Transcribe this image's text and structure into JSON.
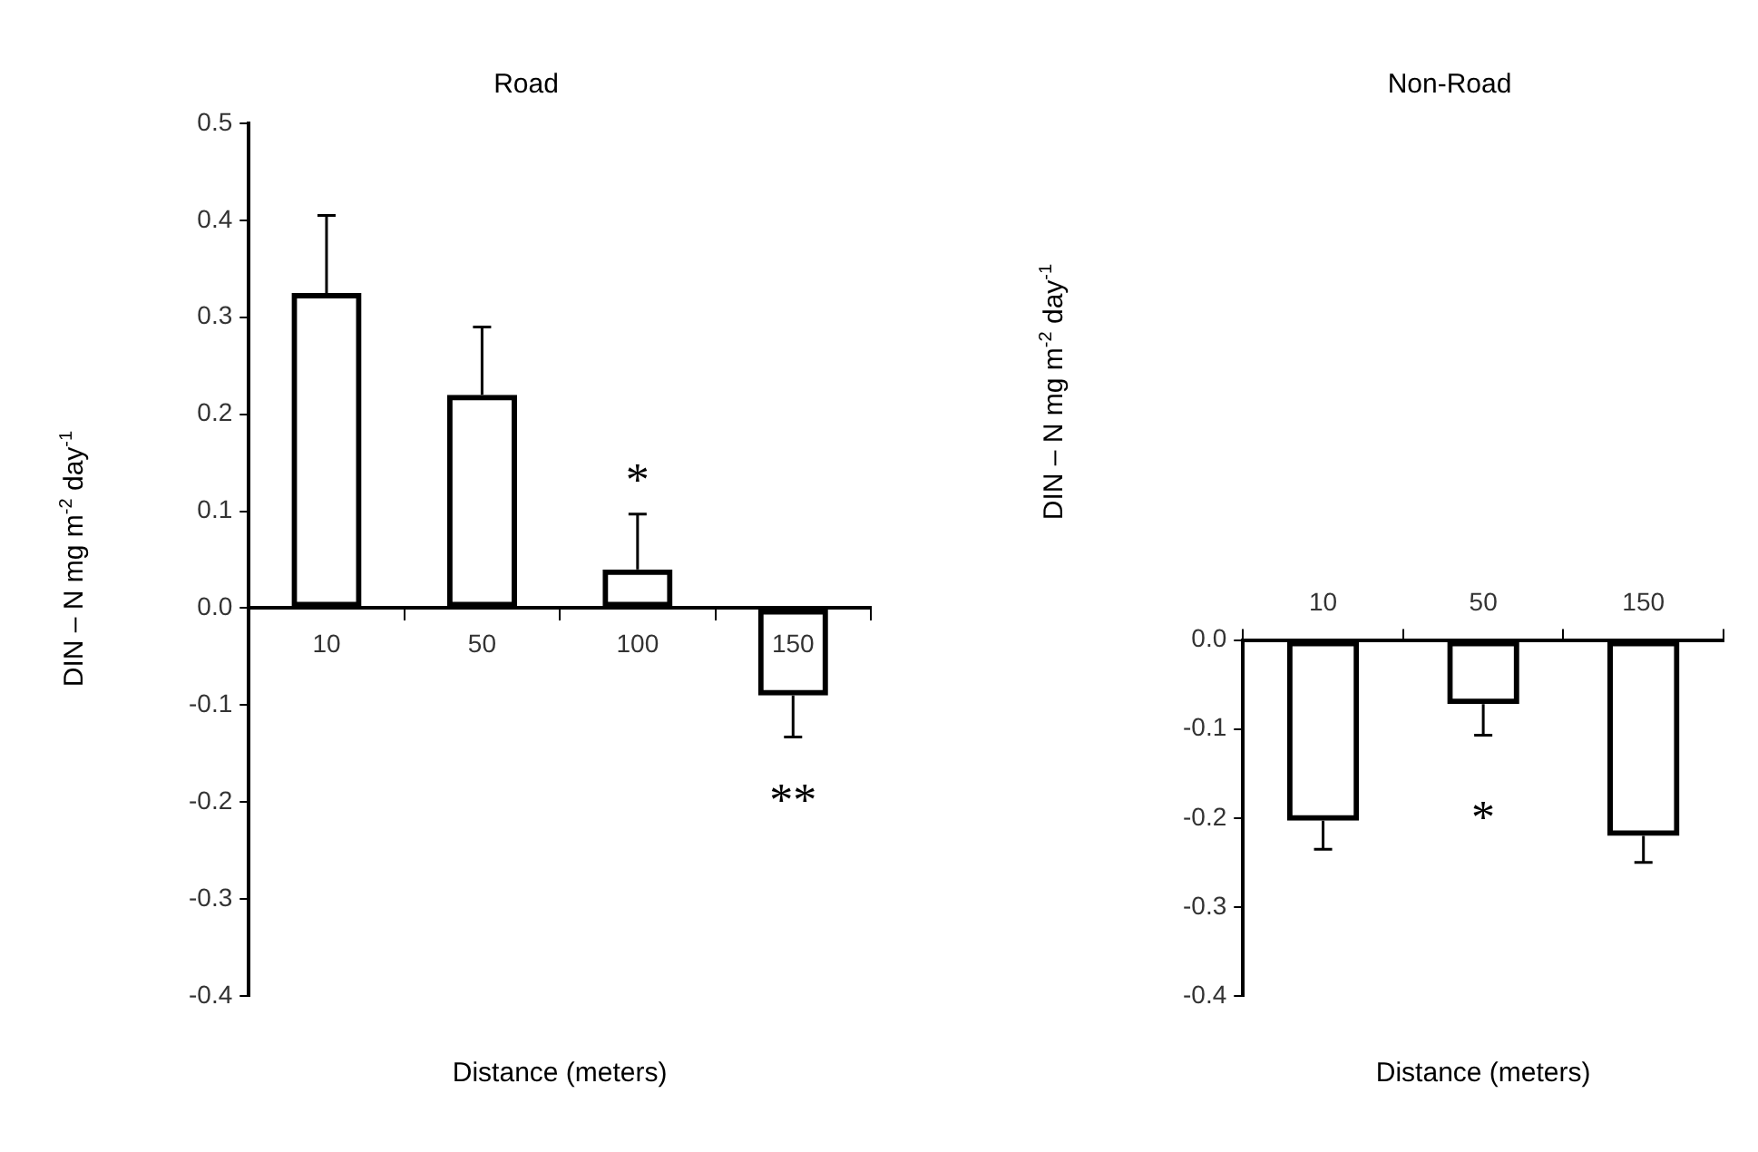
{
  "chart_data": [
    {
      "type": "bar",
      "title": "Road",
      "xlabel": "Distance (meters)",
      "ylabel": "DIN – N mg m$^{-2}$ day$^{-1}$",
      "categories": [
        "10",
        "50",
        "100",
        "150"
      ],
      "values": [
        0.325,
        0.22,
        0.04,
        -0.09
      ],
      "color": "#000000",
      "errors": [
        [
          0.325,
          0.405
        ],
        [
          0.22,
          0.29
        ],
        [
          0.04,
          0.097
        ],
        [
          -0.133,
          -0.09
        ]
      ],
      "ylim": [
        -0.4,
        0.5
      ],
      "yticks": [
        {
          "value": -0.4,
          "label": "-0.4"
        },
        {
          "value": -0.3,
          "label": "-0.3"
        },
        {
          "value": -0.2,
          "label": "-0.2"
        },
        {
          "value": -0.1,
          "label": "-0.1"
        },
        {
          "value": 0,
          "label": "0.0"
        },
        {
          "value": 0.1,
          "label": "0.1"
        },
        {
          "value": 0.2,
          "label": "0.2"
        },
        {
          "value": 0.3,
          "label": "0.3"
        },
        {
          "value": 0.4,
          "label": "0.4"
        },
        {
          "value": 0.5,
          "label": "0.5"
        }
      ],
      "annotations": [
        "*",
        "**"
      ],
      "grid": false,
      "legend": false
    },
    {
      "type": "bar",
      "title": "Non-Road",
      "xlabel": "Distance (meters)",
      "ylabel": "DIN – N mg m$^{-2}$ day$^{-1}$",
      "categories": [
        "10",
        "50",
        "150"
      ],
      "values": [
        -0.203,
        -0.072,
        -0.22
      ],
      "color": "#000000",
      "errors": [
        [
          -0.235,
          -0.203
        ],
        [
          -0.107,
          -0.072
        ],
        [
          -0.25,
          -0.22
        ]
      ],
      "ylim": [
        -0.4,
        0.0
      ],
      "yticks": [
        {
          "value": -0.4,
          "label": "-0.4"
        },
        {
          "value": -0.3,
          "label": "-0.3"
        },
        {
          "value": -0.2,
          "label": "-0.2"
        },
        {
          "value": -0.1,
          "label": "-0.1"
        },
        {
          "value": 0,
          "label": "0.0"
        }
      ],
      "annotations": [
        "*"
      ],
      "grid": false,
      "legend": false
    }
  ]
}
